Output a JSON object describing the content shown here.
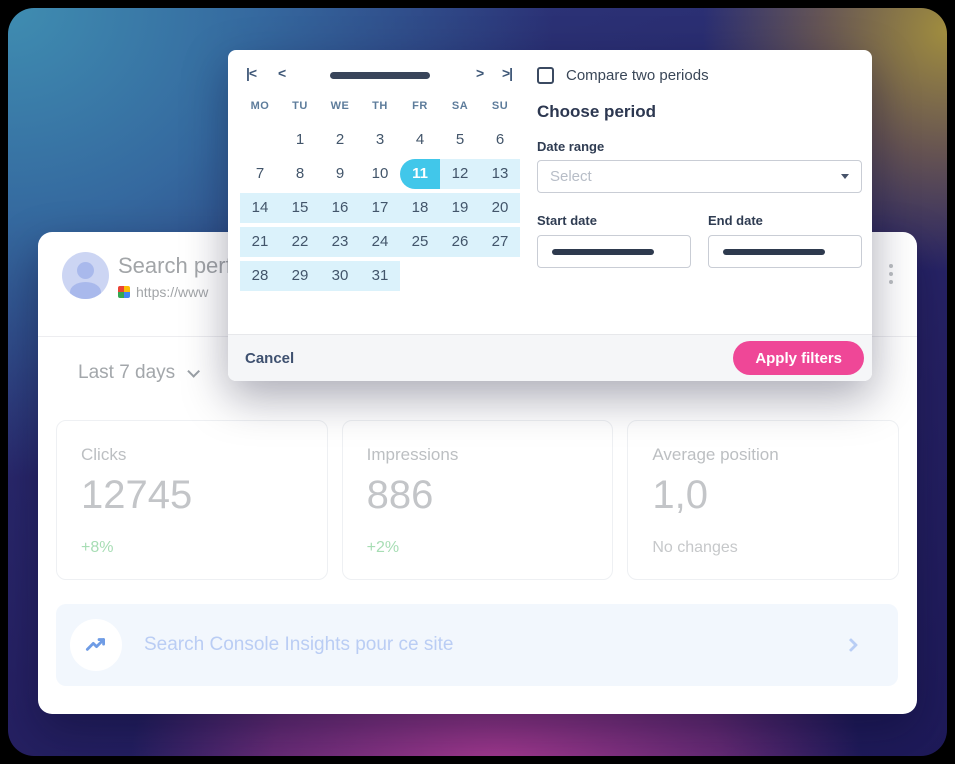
{
  "colors": {
    "accent_pink": "#EF4797",
    "selected_cyan": "#41C7EA",
    "range_light_blue": "#DBF2FB",
    "positive_green": "#A7DDB4",
    "neutral_gray": "#C6C8CA",
    "banner_blue": "#BACDF4"
  },
  "main_card": {
    "title": "Search perf",
    "site_url": "https://www",
    "date_filter_label": "Last 7 days",
    "stats": [
      {
        "label": "Clicks",
        "value": "12745",
        "delta": "+8%",
        "delta_type": "positive"
      },
      {
        "label": "Impressions",
        "value": "886",
        "delta": "+2%",
        "delta_type": "positive"
      },
      {
        "label": "Average position",
        "value": "1,0",
        "delta": "No changes",
        "delta_type": "neutral"
      }
    ],
    "insights_banner": {
      "label": "Search Console Insights pour ce site"
    },
    "icons": {
      "avatar": "person-icon",
      "favicon": "site-favicon",
      "menu": "kebab-menu-icon",
      "banner": "trending-up-icon",
      "banner_chevron": "chevron-right-icon"
    }
  },
  "modal": {
    "calendar": {
      "nav": {
        "first": "|<",
        "prev": "<",
        "next": ">",
        "last": ">|"
      },
      "month_redacted": true,
      "weekdays": [
        "MO",
        "TU",
        "WE",
        "TH",
        "FR",
        "SA",
        "SU"
      ],
      "weeks": [
        [
          "",
          1,
          2,
          3,
          4,
          5,
          6
        ],
        [
          7,
          8,
          9,
          10,
          11,
          12,
          13
        ],
        [
          14,
          15,
          16,
          17,
          18,
          19,
          20
        ],
        [
          21,
          22,
          23,
          24,
          25,
          26,
          27
        ],
        [
          28,
          29,
          30,
          31,
          "",
          "",
          ""
        ]
      ],
      "selected_day": 11,
      "highlight_start": 11,
      "highlight_end": 31
    },
    "compare_checkbox_label": "Compare two periods",
    "compare_checked": false,
    "choose_period_heading": "Choose period",
    "date_range_label": "Date range",
    "date_range_placeholder": "Select",
    "start_date_label": "Start date",
    "end_date_label": "End date",
    "start_date_redacted": true,
    "end_date_redacted": true,
    "footer": {
      "cancel_label": "Cancel",
      "apply_label": "Apply filters"
    }
  }
}
